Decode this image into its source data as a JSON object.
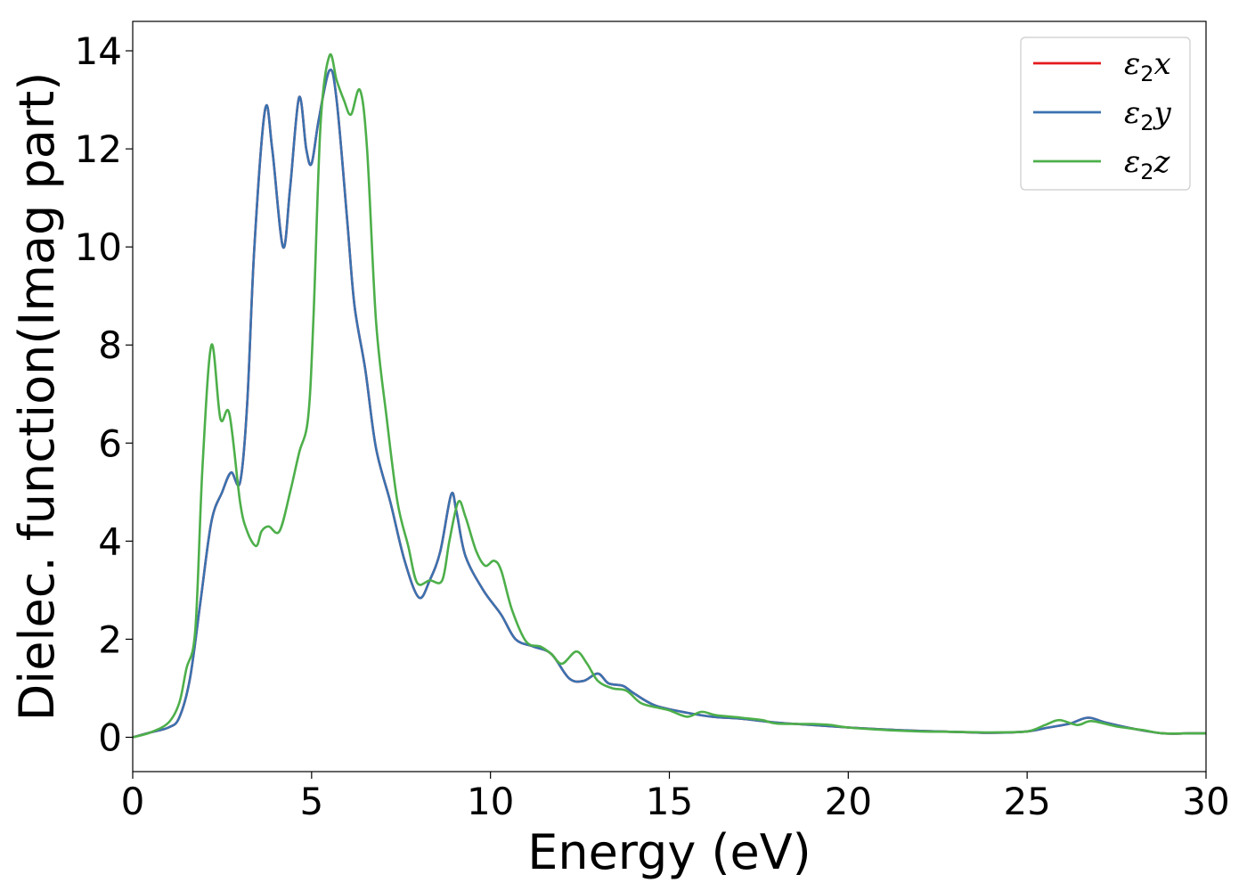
{
  "chart_data": {
    "type": "line",
    "xlabel": "Energy (eV)",
    "ylabel": "Dielec. function(Imag part)",
    "xlim": [
      0,
      30
    ],
    "ylim": [
      -0.7,
      14.6
    ],
    "xticks": [
      0,
      5,
      10,
      15,
      20,
      25,
      30
    ],
    "yticks": [
      0,
      2,
      4,
      6,
      8,
      10,
      12,
      14
    ],
    "grid": false,
    "legend_position": "top-right",
    "series": [
      {
        "name": "ε2x",
        "legend": {
          "base": "ε",
          "sub": "2",
          "tail": "x"
        },
        "color": "#e41a1c",
        "points": [
          [
            0,
            0
          ],
          [
            0.5,
            0.1
          ],
          [
            1.0,
            0.2
          ],
          [
            1.3,
            0.4
          ],
          [
            1.6,
            1.2
          ],
          [
            1.9,
            2.8
          ],
          [
            2.2,
            4.4
          ],
          [
            2.5,
            5.0
          ],
          [
            2.75,
            5.4
          ],
          [
            3.0,
            5.2
          ],
          [
            3.2,
            6.8
          ],
          [
            3.4,
            10.0
          ],
          [
            3.7,
            12.8
          ],
          [
            3.9,
            12.0
          ],
          [
            4.2,
            10.0
          ],
          [
            4.4,
            11.2
          ],
          [
            4.65,
            13.05
          ],
          [
            4.85,
            12.0
          ],
          [
            5.0,
            11.7
          ],
          [
            5.2,
            12.6
          ],
          [
            5.5,
            13.6
          ],
          [
            5.7,
            13.0
          ],
          [
            6.0,
            10.5
          ],
          [
            6.2,
            8.8
          ],
          [
            6.5,
            7.5
          ],
          [
            6.8,
            5.9
          ],
          [
            7.2,
            4.8
          ],
          [
            7.6,
            3.6
          ],
          [
            8.0,
            2.85
          ],
          [
            8.3,
            3.2
          ],
          [
            8.6,
            3.8
          ],
          [
            8.9,
            4.95
          ],
          [
            9.05,
            4.6
          ],
          [
            9.3,
            3.7
          ],
          [
            9.8,
            3.0
          ],
          [
            10.3,
            2.5
          ],
          [
            10.7,
            2.0
          ],
          [
            11.2,
            1.85
          ],
          [
            11.7,
            1.7
          ],
          [
            12.2,
            1.2
          ],
          [
            12.6,
            1.15
          ],
          [
            13.0,
            1.3
          ],
          [
            13.3,
            1.1
          ],
          [
            13.7,
            1.05
          ],
          [
            14.0,
            0.9
          ],
          [
            14.6,
            0.65
          ],
          [
            15.5,
            0.5
          ],
          [
            16.2,
            0.42
          ],
          [
            17.0,
            0.38
          ],
          [
            18.0,
            0.3
          ],
          [
            19.0,
            0.25
          ],
          [
            20.0,
            0.2
          ],
          [
            21.0,
            0.16
          ],
          [
            22.0,
            0.13
          ],
          [
            23.0,
            0.11
          ],
          [
            24.0,
            0.09
          ],
          [
            25.0,
            0.12
          ],
          [
            25.6,
            0.2
          ],
          [
            26.2,
            0.28
          ],
          [
            26.7,
            0.4
          ],
          [
            27.2,
            0.3
          ],
          [
            28.0,
            0.17
          ],
          [
            28.8,
            0.08
          ],
          [
            29.5,
            0.08
          ],
          [
            30.0,
            0.08
          ]
        ]
      },
      {
        "name": "ε2y",
        "legend": {
          "base": "ε",
          "sub": "2",
          "tail": "y"
        },
        "color": "#3a72b0",
        "points": [
          [
            0,
            0
          ],
          [
            0.5,
            0.1
          ],
          [
            1.0,
            0.2
          ],
          [
            1.3,
            0.4
          ],
          [
            1.6,
            1.2
          ],
          [
            1.9,
            2.8
          ],
          [
            2.2,
            4.4
          ],
          [
            2.5,
            5.0
          ],
          [
            2.75,
            5.4
          ],
          [
            3.0,
            5.2
          ],
          [
            3.2,
            6.8
          ],
          [
            3.4,
            10.0
          ],
          [
            3.7,
            12.8
          ],
          [
            3.9,
            12.0
          ],
          [
            4.2,
            10.0
          ],
          [
            4.4,
            11.2
          ],
          [
            4.65,
            13.05
          ],
          [
            4.85,
            12.0
          ],
          [
            5.0,
            11.7
          ],
          [
            5.2,
            12.6
          ],
          [
            5.5,
            13.6
          ],
          [
            5.7,
            13.0
          ],
          [
            6.0,
            10.5
          ],
          [
            6.2,
            8.8
          ],
          [
            6.5,
            7.5
          ],
          [
            6.8,
            5.9
          ],
          [
            7.2,
            4.8
          ],
          [
            7.6,
            3.6
          ],
          [
            8.0,
            2.85
          ],
          [
            8.3,
            3.2
          ],
          [
            8.6,
            3.8
          ],
          [
            8.9,
            4.95
          ],
          [
            9.05,
            4.6
          ],
          [
            9.3,
            3.7
          ],
          [
            9.8,
            3.0
          ],
          [
            10.3,
            2.5
          ],
          [
            10.7,
            2.0
          ],
          [
            11.2,
            1.85
          ],
          [
            11.7,
            1.7
          ],
          [
            12.2,
            1.2
          ],
          [
            12.6,
            1.15
          ],
          [
            13.0,
            1.3
          ],
          [
            13.3,
            1.1
          ],
          [
            13.7,
            1.05
          ],
          [
            14.0,
            0.9
          ],
          [
            14.6,
            0.65
          ],
          [
            15.5,
            0.5
          ],
          [
            16.2,
            0.42
          ],
          [
            17.0,
            0.38
          ],
          [
            18.0,
            0.3
          ],
          [
            19.0,
            0.25
          ],
          [
            20.0,
            0.2
          ],
          [
            21.0,
            0.16
          ],
          [
            22.0,
            0.13
          ],
          [
            23.0,
            0.11
          ],
          [
            24.0,
            0.09
          ],
          [
            25.0,
            0.12
          ],
          [
            25.6,
            0.2
          ],
          [
            26.2,
            0.28
          ],
          [
            26.7,
            0.4
          ],
          [
            27.2,
            0.3
          ],
          [
            28.0,
            0.17
          ],
          [
            28.8,
            0.08
          ],
          [
            29.5,
            0.08
          ],
          [
            30.0,
            0.08
          ]
        ]
      },
      {
        "name": "ε2z",
        "legend": {
          "base": "ε",
          "sub": "2",
          "tail": "z"
        },
        "color": "#4daf4a",
        "points": [
          [
            0,
            0
          ],
          [
            0.5,
            0.1
          ],
          [
            1.0,
            0.3
          ],
          [
            1.3,
            0.7
          ],
          [
            1.5,
            1.4
          ],
          [
            1.75,
            2.2
          ],
          [
            1.95,
            5.5
          ],
          [
            2.2,
            8.0
          ],
          [
            2.45,
            6.5
          ],
          [
            2.7,
            6.6
          ],
          [
            3.0,
            4.8
          ],
          [
            3.2,
            4.2
          ],
          [
            3.45,
            3.9
          ],
          [
            3.6,
            4.2
          ],
          [
            3.8,
            4.3
          ],
          [
            4.1,
            4.2
          ],
          [
            4.4,
            5.0
          ],
          [
            4.65,
            5.8
          ],
          [
            4.9,
            6.5
          ],
          [
            5.05,
            8.5
          ],
          [
            5.25,
            12.5
          ],
          [
            5.5,
            13.9
          ],
          [
            5.7,
            13.4
          ],
          [
            5.9,
            13.0
          ],
          [
            6.1,
            12.7
          ],
          [
            6.35,
            13.2
          ],
          [
            6.55,
            12.0
          ],
          [
            6.8,
            8.5
          ],
          [
            7.1,
            6.5
          ],
          [
            7.4,
            4.8
          ],
          [
            7.7,
            3.9
          ],
          [
            7.95,
            3.15
          ],
          [
            8.3,
            3.2
          ],
          [
            8.65,
            3.2
          ],
          [
            8.85,
            4.0
          ],
          [
            9.1,
            4.8
          ],
          [
            9.3,
            4.5
          ],
          [
            9.6,
            3.8
          ],
          [
            9.85,
            3.5
          ],
          [
            10.1,
            3.6
          ],
          [
            10.3,
            3.4
          ],
          [
            10.6,
            2.6
          ],
          [
            11.0,
            1.95
          ],
          [
            11.4,
            1.85
          ],
          [
            11.7,
            1.7
          ],
          [
            12.0,
            1.5
          ],
          [
            12.4,
            1.75
          ],
          [
            12.7,
            1.5
          ],
          [
            13.0,
            1.15
          ],
          [
            13.4,
            1.0
          ],
          [
            13.8,
            0.95
          ],
          [
            14.2,
            0.7
          ],
          [
            14.7,
            0.6
          ],
          [
            15.0,
            0.55
          ],
          [
            15.5,
            0.42
          ],
          [
            15.9,
            0.52
          ],
          [
            16.3,
            0.45
          ],
          [
            17.0,
            0.4
          ],
          [
            17.6,
            0.35
          ],
          [
            18.0,
            0.28
          ],
          [
            19.0,
            0.27
          ],
          [
            19.5,
            0.25
          ],
          [
            20.0,
            0.2
          ],
          [
            21.0,
            0.15
          ],
          [
            22.0,
            0.12
          ],
          [
            23.0,
            0.11
          ],
          [
            24.0,
            0.1
          ],
          [
            25.0,
            0.12
          ],
          [
            25.5,
            0.25
          ],
          [
            25.9,
            0.35
          ],
          [
            26.4,
            0.25
          ],
          [
            26.8,
            0.33
          ],
          [
            27.5,
            0.22
          ],
          [
            28.2,
            0.15
          ],
          [
            28.8,
            0.08
          ],
          [
            29.5,
            0.08
          ],
          [
            30.0,
            0.08
          ]
        ]
      }
    ]
  }
}
